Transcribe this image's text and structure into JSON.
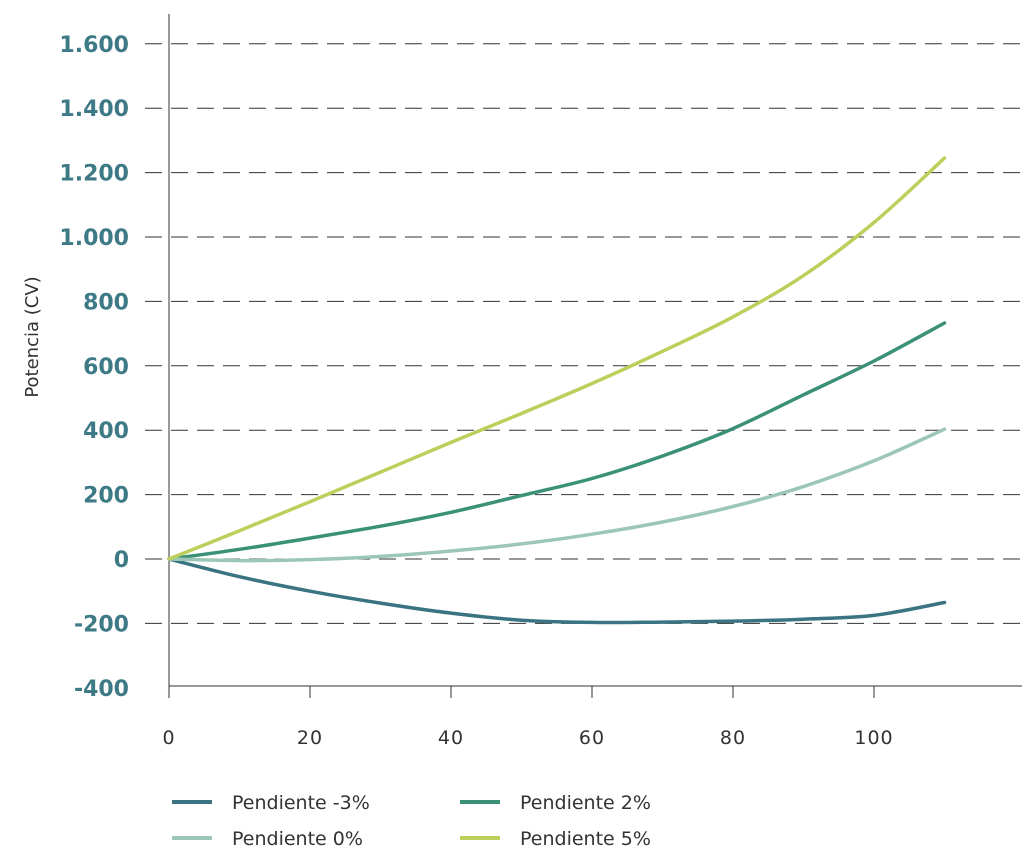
{
  "chart_data": {
    "type": "line",
    "title": "",
    "xlabel": "",
    "ylabel": "Potencia (CV)",
    "xlim": [
      0,
      120
    ],
    "ylim": [
      -400,
      1600
    ],
    "xticks": [
      0,
      20,
      40,
      60,
      80,
      100
    ],
    "xtick_labels": [
      "0",
      "20",
      "40",
      "60",
      "80",
      "100"
    ],
    "yticks": [
      -400,
      -200,
      0,
      200,
      400,
      600,
      800,
      1000,
      1200,
      1400,
      1600
    ],
    "ytick_labels": [
      "-400",
      "-200",
      "0",
      "200",
      "400",
      "600",
      "800",
      "1.000",
      "1.200",
      "1.400",
      "1.600"
    ],
    "grid": "horizontal dashed",
    "legend_position": "bottom",
    "series": [
      {
        "name": "Pendiente -3%",
        "color": "#3a7483",
        "x": [
          0,
          10,
          20,
          30,
          40,
          50,
          60,
          70,
          80,
          90,
          100,
          110
        ],
        "y": [
          0,
          -55,
          -100,
          -137,
          -168,
          -190,
          -197,
          -196,
          -193,
          -187,
          -175,
          -135
        ]
      },
      {
        "name": "Pendiente 2%",
        "color": "#3a9178",
        "x": [
          0,
          10,
          20,
          30,
          40,
          50,
          60,
          70,
          80,
          90,
          100,
          110
        ],
        "y": [
          0,
          30,
          65,
          102,
          145,
          197,
          250,
          320,
          405,
          510,
          615,
          733
        ]
      },
      {
        "name": "Pendiente 0%",
        "color": "#9cc7b7",
        "x": [
          0,
          10,
          20,
          30,
          40,
          50,
          60,
          70,
          80,
          90,
          100,
          110
        ],
        "y": [
          0,
          -5,
          -2,
          8,
          25,
          47,
          77,
          115,
          163,
          225,
          305,
          403
        ]
      },
      {
        "name": "Pendiente 5%",
        "color": "#bccf5b",
        "x": [
          0,
          10,
          20,
          30,
          40,
          50,
          60,
          70,
          80,
          90,
          100,
          110
        ],
        "y": [
          0,
          88,
          178,
          270,
          362,
          452,
          545,
          645,
          752,
          880,
          1045,
          1245
        ]
      }
    ]
  }
}
